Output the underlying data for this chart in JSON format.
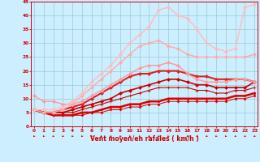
{
  "xlabel": "Vent moyen/en rafales ( km/h )",
  "bg_color": "#cceeff",
  "grid_color": "#99cccc",
  "axis_color": "#cc0000",
  "x": [
    0,
    1,
    2,
    3,
    4,
    5,
    6,
    7,
    8,
    9,
    10,
    11,
    12,
    13,
    14,
    15,
    16,
    17,
    18,
    19,
    20,
    21,
    22,
    23
  ],
  "series": [
    {
      "y": [
        6,
        5,
        4,
        4,
        4,
        4,
        5,
        5,
        6,
        6,
        7,
        7,
        8,
        8,
        9,
        9,
        9,
        9,
        9,
        9,
        9,
        10,
        10,
        11
      ],
      "color": "#dd0000",
      "lw": 0.7,
      "marker": "D",
      "ms": 1.5
    },
    {
      "y": [
        6,
        5,
        4,
        4,
        4,
        5,
        5,
        6,
        7,
        7,
        8,
        8,
        9,
        9,
        10,
        10,
        10,
        10,
        10,
        10,
        10,
        11,
        11,
        12
      ],
      "color": "#dd0000",
      "lw": 1.8,
      "marker": "D",
      "ms": 1.5
    },
    {
      "y": [
        6,
        5,
        5,
        5,
        5,
        6,
        7,
        8,
        9,
        10,
        11,
        12,
        13,
        14,
        14,
        14,
        14,
        13,
        13,
        12,
        12,
        13,
        13,
        14
      ],
      "color": "#cc0000",
      "lw": 0.8,
      "marker": "+",
      "ms": 2.5
    },
    {
      "y": [
        6,
        5,
        5,
        5,
        6,
        7,
        8,
        9,
        10,
        12,
        13,
        14,
        15,
        16,
        17,
        17,
        16,
        15,
        15,
        14,
        14,
        14,
        14,
        16
      ],
      "color": "#cc0000",
      "lw": 1.2,
      "marker": "D",
      "ms": 2.0
    },
    {
      "y": [
        6,
        5,
        5,
        6,
        7,
        8,
        10,
        12,
        14,
        16,
        18,
        19,
        19,
        20,
        20,
        20,
        19,
        18,
        18,
        17,
        17,
        17,
        17,
        16
      ],
      "color": "#dd2222",
      "lw": 1.5,
      "marker": "D",
      "ms": 2.0
    },
    {
      "y": [
        11,
        9,
        9,
        8,
        8,
        9,
        11,
        13,
        15,
        17,
        19,
        21,
        22,
        22,
        23,
        22,
        19,
        17,
        16,
        16,
        16,
        17,
        17,
        16
      ],
      "color": "#ff9999",
      "lw": 1.0,
      "marker": "D",
      "ms": 2.0
    },
    {
      "y": [
        6,
        5,
        5,
        6,
        8,
        11,
        14,
        17,
        20,
        23,
        26,
        29,
        30,
        31,
        29,
        28,
        26,
        25,
        25,
        25,
        25,
        25,
        25,
        26
      ],
      "color": "#ffaaaa",
      "lw": 1.0,
      "marker": "D",
      "ms": 2.0
    },
    {
      "y": [
        6,
        6,
        6,
        7,
        9,
        12,
        16,
        19,
        22,
        26,
        30,
        33,
        36,
        42,
        43,
        40,
        39,
        35,
        30,
        28,
        27,
        28,
        43,
        44
      ],
      "color": "#ffbbbb",
      "lw": 1.0,
      "marker": "D",
      "ms": 2.0
    }
  ],
  "xlim": [
    -0.3,
    23.3
  ],
  "ylim": [
    0,
    45
  ],
  "yticks": [
    0,
    5,
    10,
    15,
    20,
    25,
    30,
    35,
    40,
    45
  ],
  "xticks": [
    0,
    1,
    2,
    3,
    4,
    5,
    6,
    7,
    8,
    9,
    10,
    11,
    12,
    13,
    14,
    15,
    16,
    17,
    18,
    19,
    20,
    21,
    22,
    23
  ]
}
